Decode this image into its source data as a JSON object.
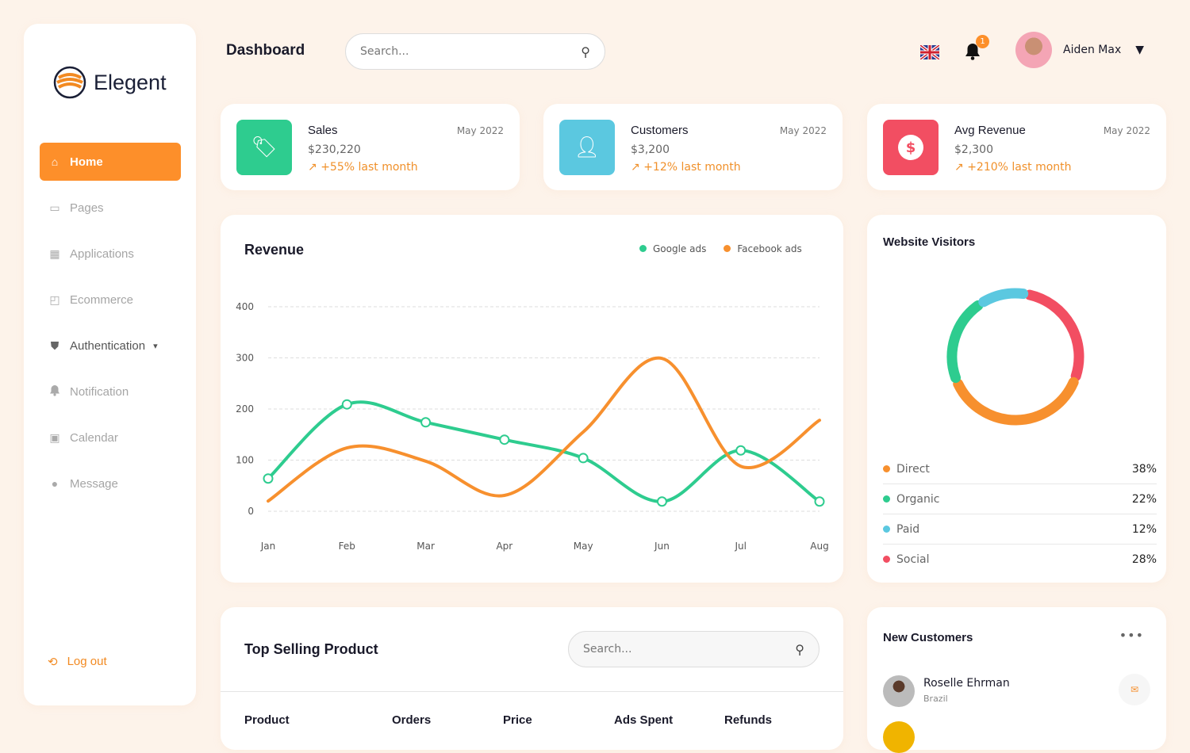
{
  "brand": {
    "name": "Elegent"
  },
  "sidebar": {
    "items": [
      {
        "label": "Home",
        "icon": "home-icon",
        "active": true
      },
      {
        "label": "Pages",
        "icon": "inbox-icon"
      },
      {
        "label": "Applications",
        "icon": "grid-icon"
      },
      {
        "label": "Ecommerce",
        "icon": "bag-icon"
      },
      {
        "label": "Authentication",
        "icon": "shield-icon"
      },
      {
        "label": "Notification",
        "icon": "bell-icon"
      },
      {
        "label": "Calendar",
        "icon": "calendar-icon"
      },
      {
        "label": "Message",
        "icon": "chat-icon"
      }
    ],
    "logout": "Log out"
  },
  "header": {
    "title": "Dashboard",
    "search_placeholder": "Search...",
    "notification_count": "1",
    "user_name": "Aiden Max"
  },
  "stats": [
    {
      "name": "Sales",
      "date": "May 2022",
      "value": "$230,220",
      "change": "+55% last month",
      "color": "#2ecc8f"
    },
    {
      "name": "Customers",
      "date": "May 2022",
      "value": "$3,200",
      "change": "+12% last month",
      "color": "#5bc8e0"
    },
    {
      "name": "Avg Revenue",
      "date": "May 2022",
      "value": "$2,300",
      "change": "+210% last month",
      "color": "#f24e62"
    }
  ],
  "chart_data": {
    "type": "line",
    "title": "Revenue",
    "categories": [
      "Jan",
      "Feb",
      "Mar",
      "Apr",
      "May",
      "Jun",
      "Jul",
      "Aug"
    ],
    "yticks": [
      0,
      100,
      200,
      300,
      400
    ],
    "ylim": [
      0,
      400
    ],
    "grid": true,
    "legend": "top-right",
    "series": [
      {
        "name": "Google ads",
        "color": "#2ecc8f",
        "values": [
          64,
          209,
          174,
          140,
          104,
          19,
          119,
          19
        ]
      },
      {
        "name": "Facebook ads",
        "color": "#f7902e",
        "values": [
          20,
          124,
          98,
          31,
          155,
          299,
          88,
          178
        ]
      }
    ]
  },
  "visitors": {
    "title": "Website Visitors",
    "items": [
      {
        "label": "Direct",
        "value": "38%",
        "pct": 38,
        "color": "#f7902e"
      },
      {
        "label": "Organic",
        "value": "22%",
        "pct": 22,
        "color": "#2ecc8f"
      },
      {
        "label": "Paid",
        "value": "12%",
        "pct": 12,
        "color": "#5bc8e0"
      },
      {
        "label": "Social",
        "value": "28%",
        "pct": 28,
        "color": "#f24e62"
      }
    ]
  },
  "top_selling": {
    "title": "Top Selling Product",
    "search_placeholder": "Search...",
    "columns": [
      "Product",
      "Orders",
      "Price",
      "Ads Spent",
      "Refunds"
    ]
  },
  "new_customers": {
    "title": "New Customers",
    "items": [
      {
        "name": "Roselle Ehrman",
        "country": "Brazil"
      }
    ]
  }
}
